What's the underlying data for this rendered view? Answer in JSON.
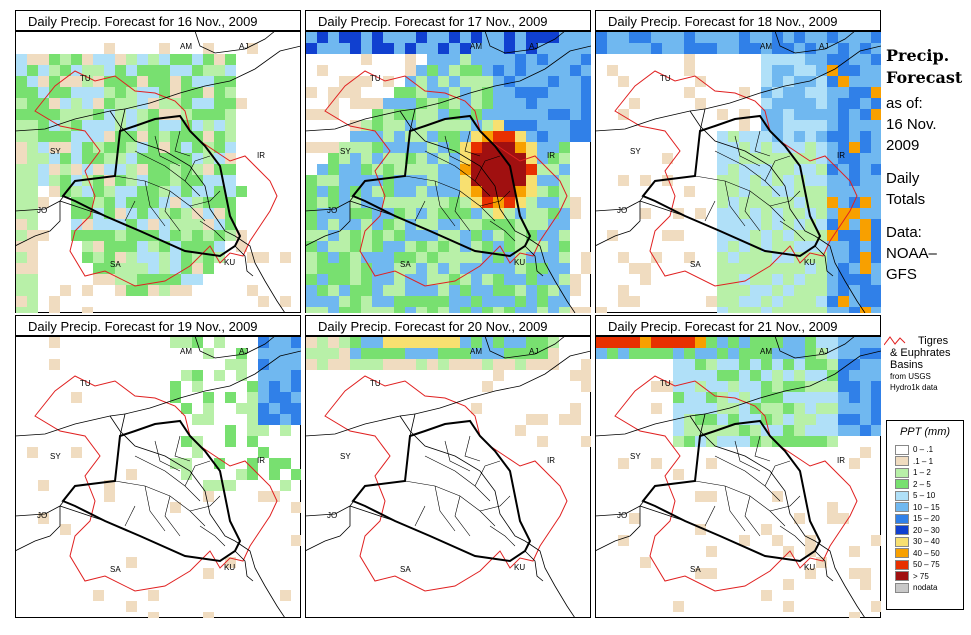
{
  "panels": [
    {
      "title": "Daily Precip. Forecast for  16 Nov., 2009",
      "day": 16
    },
    {
      "title": "Daily Precip. Forecast for  17 Nov., 2009",
      "day": 17
    },
    {
      "title": "Daily Precip. Forecast for  18 Nov., 2009",
      "day": 18
    },
    {
      "title": "Daily Precip. Forecast for  19 Nov., 2009",
      "day": 19
    },
    {
      "title": "Daily Precip. Forecast for  20 Nov., 2009",
      "day": 20
    },
    {
      "title": "Daily Precip. Forecast for  21 Nov., 2009",
      "day": 21
    }
  ],
  "map_labels": [
    "AM",
    "AJ",
    "TU",
    "SY",
    "IR",
    "JO",
    "SA",
    "KU"
  ],
  "sidebar": {
    "line1": "Precip.",
    "line2": "Forecast",
    "line3": "as of:",
    "line4": "16 Nov.",
    "line5": "2009",
    "line6": "Daily",
    "line7": "Totals",
    "line8": "Data:",
    "line9": "NOAA–",
    "line10": "GFS"
  },
  "basin_note": {
    "line1": "Tigres",
    "line2": "& Euphrates",
    "line3": "Basins",
    "line4": "from USGS",
    "line5": "Hydro1k data"
  },
  "legend": {
    "title": "PPT (mm)",
    "items": [
      {
        "label": "0 – .1",
        "color": "#ffffff"
      },
      {
        "label": ".1 – 1",
        "color": "#f0dcc0"
      },
      {
        "label": "1 – 2",
        "color": "#b8f0a8"
      },
      {
        "label": "2 – 5",
        "color": "#78e070"
      },
      {
        "label": "5 – 10",
        "color": "#b0e0f8"
      },
      {
        "label": "10 – 15",
        "color": "#70b8f0"
      },
      {
        "label": "15 – 20",
        "color": "#3080e8"
      },
      {
        "label": "20 – 30",
        "color": "#1040d0"
      },
      {
        "label": "30 – 40",
        "color": "#f8e070"
      },
      {
        "label": "40 – 50",
        "color": "#f8a000"
      },
      {
        "label": "50 – 75",
        "color": "#e83000"
      },
      {
        "label": "> 75",
        "color": "#a01010"
      },
      {
        "label": "nodata",
        "color": "#c8c8c8"
      }
    ]
  }
}
